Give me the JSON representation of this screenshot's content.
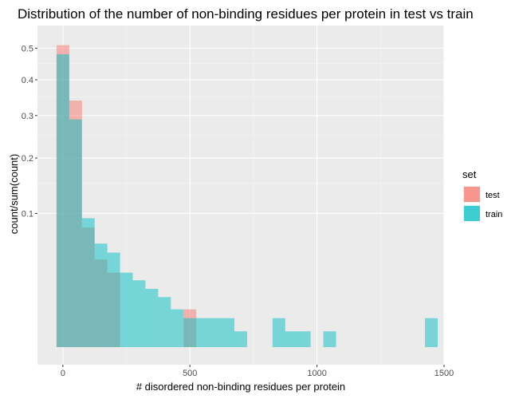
{
  "chart_data": {
    "type": "bar",
    "title": "Distribution of the number of non-binding residues per protein in test vs train",
    "xlabel": "# disordered non-binding residues per protein",
    "ylabel": "count/sum(count)",
    "x_ticks": [
      "0",
      "500",
      "1000",
      "1500"
    ],
    "y_ticks": [
      "0.1",
      "0.2",
      "0.3",
      "0.4",
      "0.5"
    ],
    "xlim": [
      -100,
      1500
    ],
    "y_scale": "sqrt",
    "grid": true,
    "legend": {
      "title": "set",
      "position": "right",
      "entries": [
        {
          "label": "test",
          "color": "#f8766d"
        },
        {
          "label": "train",
          "color": "#00bfc4"
        }
      ]
    },
    "series": [
      {
        "name": "test",
        "color": "#f8766d",
        "bins": [
          {
            "x0": -25,
            "x1": 25,
            "value": 0.51
          },
          {
            "x0": 25,
            "x1": 75,
            "value": 0.34
          },
          {
            "x0": 75,
            "x1": 125,
            "value": 0.08
          },
          {
            "x0": 125,
            "x1": 175,
            "value": 0.043
          },
          {
            "x0": 175,
            "x1": 225,
            "value": 0.031
          },
          {
            "x0": 475,
            "x1": 525,
            "value": 0.008
          }
        ]
      },
      {
        "name": "train",
        "color": "#00bfc4",
        "bins": [
          {
            "x0": -25,
            "x1": 25,
            "value": 0.48
          },
          {
            "x0": 25,
            "x1": 75,
            "value": 0.29
          },
          {
            "x0": 75,
            "x1": 125,
            "value": 0.093
          },
          {
            "x0": 125,
            "x1": 175,
            "value": 0.06
          },
          {
            "x0": 175,
            "x1": 225,
            "value": 0.05
          },
          {
            "x0": 225,
            "x1": 275,
            "value": 0.031
          },
          {
            "x0": 275,
            "x1": 325,
            "value": 0.025
          },
          {
            "x0": 325,
            "x1": 375,
            "value": 0.019
          },
          {
            "x0": 375,
            "x1": 425,
            "value": 0.014
          },
          {
            "x0": 425,
            "x1": 475,
            "value": 0.008
          },
          {
            "x0": 475,
            "x1": 525,
            "value": 0.0047
          },
          {
            "x0": 525,
            "x1": 575,
            "value": 0.0047
          },
          {
            "x0": 575,
            "x1": 625,
            "value": 0.0047
          },
          {
            "x0": 625,
            "x1": 675,
            "value": 0.0047
          },
          {
            "x0": 675,
            "x1": 725,
            "value": 0.0014
          },
          {
            "x0": 825,
            "x1": 875,
            "value": 0.0047
          },
          {
            "x0": 875,
            "x1": 925,
            "value": 0.0014
          },
          {
            "x0": 925,
            "x1": 975,
            "value": 0.0014
          },
          {
            "x0": 1025,
            "x1": 1075,
            "value": 0.0014
          },
          {
            "x0": 1425,
            "x1": 1475,
            "value": 0.0047
          }
        ]
      }
    ]
  }
}
